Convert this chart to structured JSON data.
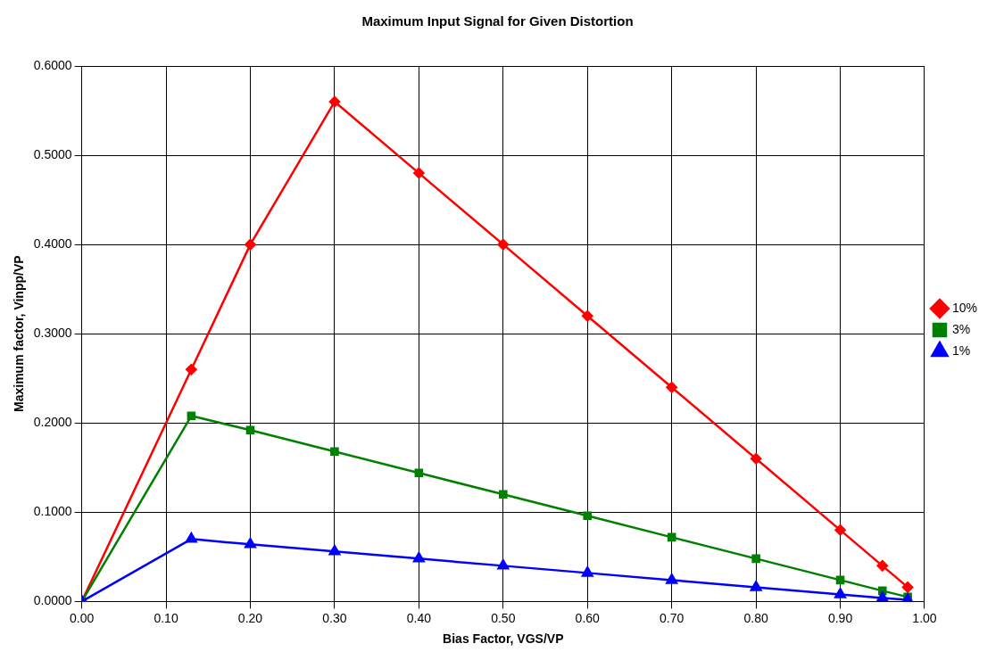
{
  "chart_data": {
    "type": "line",
    "title": "Maximum Input Signal for Given Distortion",
    "xlabel": "Bias Factor, VGS/VP",
    "ylabel": "Maximum factor, Vinpp/VP",
    "x": [
      0,
      0.13,
      0.2,
      0.3,
      0.4,
      0.5,
      0.6,
      0.7,
      0.8,
      0.9,
      0.95,
      0.98
    ],
    "series": [
      {
        "name": "10%",
        "color": "#ff0000",
        "marker": "diamond",
        "values": [
          0,
          0.26,
          0.4,
          0.56,
          0.48,
          0.4,
          0.32,
          0.24,
          0.16,
          0.08,
          0.04,
          0.016
        ]
      },
      {
        "name": "3%",
        "color": "#008000",
        "marker": "square",
        "values": [
          0,
          0.208,
          0.192,
          0.168,
          0.144,
          0.12,
          0.096,
          0.072,
          0.048,
          0.024,
          0.012,
          0.005
        ]
      },
      {
        "name": "1%",
        "color": "#0000ff",
        "marker": "triangle",
        "values": [
          0,
          0.07,
          0.064,
          0.056,
          0.048,
          0.04,
          0.032,
          0.024,
          0.016,
          0.008,
          0.004,
          0.002
        ]
      }
    ],
    "xlim": [
      0,
      1
    ],
    "xticks": [
      {
        "value": 0,
        "label": "0.00"
      },
      {
        "value": 0.1,
        "label": "0.10"
      },
      {
        "value": 0.2,
        "label": "0.20"
      },
      {
        "value": 0.3,
        "label": "0.30"
      },
      {
        "value": 0.4,
        "label": "0.40"
      },
      {
        "value": 0.5,
        "label": "0.50"
      },
      {
        "value": 0.6,
        "label": "0.60"
      },
      {
        "value": 0.7,
        "label": "0.70"
      },
      {
        "value": 0.8,
        "label": "0.80"
      },
      {
        "value": 0.9,
        "label": "0.90"
      },
      {
        "value": 1,
        "label": "1.00"
      }
    ],
    "ylim": [
      0,
      0.6
    ],
    "yticks": [
      {
        "value": 0,
        "label": "0.0000"
      },
      {
        "value": 0.1,
        "label": "0.1000"
      },
      {
        "value": 0.2,
        "label": "0.2000"
      },
      {
        "value": 0.3,
        "label": "0.3000"
      },
      {
        "value": 0.4,
        "label": "0.4000"
      },
      {
        "value": 0.5,
        "label": "0.5000"
      },
      {
        "value": 0.6,
        "label": "0.6000"
      }
    ],
    "grid": true,
    "legend": "right",
    "line_style": "solid"
  }
}
